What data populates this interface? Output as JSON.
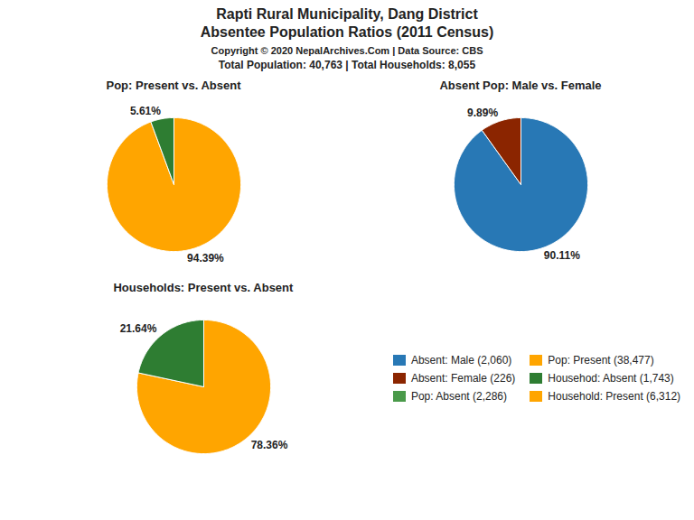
{
  "title": "Rapti Rural Municipality, Dang District",
  "subtitle": "Absentee Population Ratios (2011 Census)",
  "annotations": [
    "Copyright © 2020 NepalArchives.Com | Data Source: CBS",
    "Total Population: 40,763 | Total Households: 8,055"
  ],
  "series": [
    {
      "name": "Absent: Male (2,060)",
      "color": "#2878b5"
    },
    {
      "name": "Absent: Female (226)",
      "color": "#8B2500"
    },
    {
      "name": "Pop: Absent (2,286)",
      "color": "#4a9a4a"
    },
    {
      "name": "Pop: Present (38,477)",
      "color": "#FFA500"
    },
    {
      "name": "Househod: Absent (1,743)",
      "color": "#2e7d32"
    },
    {
      "name": "Household: Present (6,312)",
      "color": "#FFA500"
    }
  ],
  "chart_data": [
    {
      "type": "pie",
      "title": "Pop: Present vs. Absent",
      "values": [
        94.39,
        5.61
      ],
      "value_labels": [
        "94.39%",
        "5.61%"
      ],
      "colors": [
        "#FFA500",
        "#2e7d32"
      ],
      "data_labels": true
    },
    {
      "type": "pie",
      "title": "Absent Pop: Male vs. Female",
      "values": [
        90.11,
        9.89
      ],
      "value_labels": [
        "90.11%",
        "9.89%"
      ],
      "colors": [
        "#2878b5",
        "#8B2500"
      ],
      "data_labels": true
    },
    {
      "type": "pie",
      "title": "Households: Present vs. Absent",
      "values": [
        78.36,
        21.64
      ],
      "value_labels": [
        "78.36%",
        "21.64%"
      ],
      "colors": [
        "#FFA500",
        "#2e7d32"
      ],
      "data_labels": true
    }
  ]
}
